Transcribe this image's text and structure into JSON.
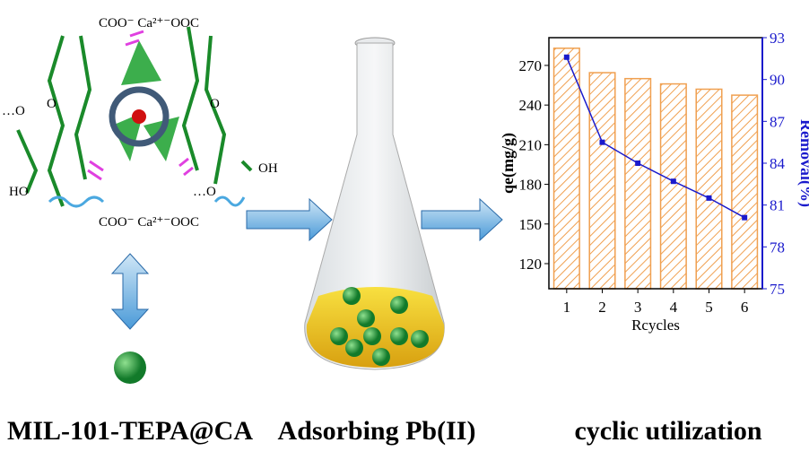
{
  "structure": {
    "top_link": "COO⁻ Ca²⁺⁻OOC",
    "bottom_link": "COO⁻ Ca²⁺⁻OOC",
    "left_o": "…O",
    "ring_o_left": "O",
    "left_ho": "HO",
    "right_oh": "OH",
    "right_o": "…O",
    "ring_o_right": "O"
  },
  "labels": {
    "left": "MIL-101-TEPA@CA",
    "middle": "Adsorbing Pb(II)",
    "right": "cyclic utilization"
  },
  "chart_data": {
    "type": "bar",
    "x_label": "Rcycles",
    "y_label": "qe(mg/g)",
    "y2_label": "Removal(%)",
    "categories": [
      "1",
      "2",
      "3",
      "4",
      "5",
      "6"
    ],
    "series": [
      {
        "name": "qe",
        "type": "bar",
        "color": "#f0a050",
        "values": [
          283,
          264.5,
          260,
          256,
          252,
          247.5
        ]
      },
      {
        "name": "Removal",
        "type": "line",
        "axis": "y2",
        "color": "#1a1acc",
        "values": [
          91.6,
          85.5,
          84.0,
          82.7,
          81.5,
          80.1
        ]
      }
    ],
    "ylim": [
      101,
      291
    ],
    "yticks": [
      120,
      150,
      180,
      210,
      240,
      270
    ],
    "y2lim": [
      75,
      93
    ],
    "y2ticks": [
      75,
      78,
      81,
      84,
      87,
      90,
      93
    ]
  }
}
